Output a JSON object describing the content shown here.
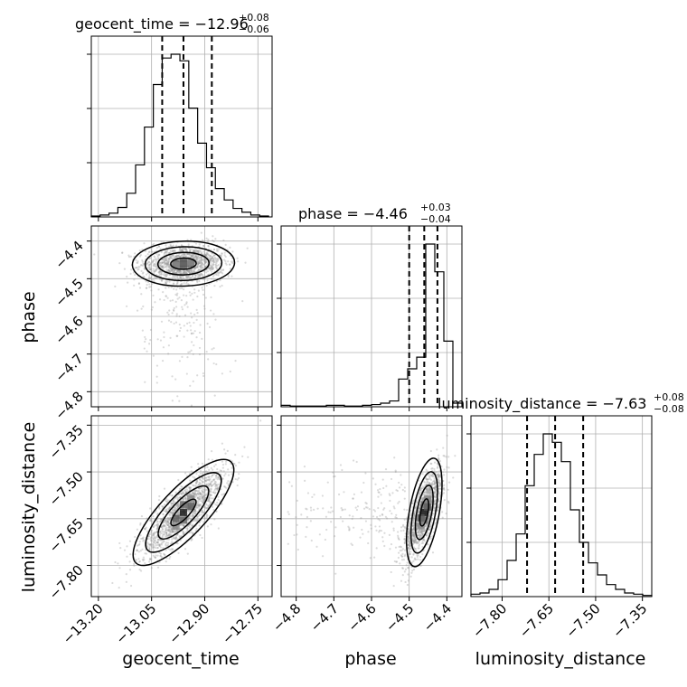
{
  "chart_data": {
    "type": "corner",
    "parameters": [
      "geocent_time",
      "phase",
      "luminosity_distance"
    ],
    "titles": [
      {
        "param": "geocent_time",
        "text": "geocent_time = −12.96",
        "plus": "+0.08",
        "minus": "−0.06"
      },
      {
        "param": "phase",
        "text": "phase = −4.46",
        "plus": "+0.03",
        "minus": "−0.04"
      },
      {
        "param": "luminosity_distance",
        "text": "luminosity_distance = −7.63",
        "plus": "+0.08",
        "minus": "−0.08"
      }
    ],
    "axes": {
      "geocent_time": {
        "range": [
          -13.22,
          -12.71
        ],
        "ticks": [
          -13.2,
          -13.05,
          -12.9,
          -12.75
        ],
        "tick_labels": [
          "−13.20",
          "−13.05",
          "−12.90",
          "−12.75"
        ]
      },
      "phase": {
        "range": [
          -4.84,
          -4.36
        ],
        "ticks": [
          -4.8,
          -4.7,
          -4.6,
          -4.5,
          -4.4
        ],
        "tick_labels": [
          "−4.8",
          "−4.7",
          "−4.6",
          "−4.5",
          "−4.4"
        ]
      },
      "luminosity_distance": {
        "range": [
          -7.9,
          -7.32
        ],
        "ticks": [
          -7.8,
          -7.65,
          -7.5,
          -7.35
        ],
        "tick_labels": [
          "−7.80",
          "−7.65",
          "−7.50",
          "−7.35"
        ]
      }
    },
    "marginals": {
      "geocent_time": {
        "quantiles": [
          -13.02,
          -12.96,
          -12.88
        ],
        "bin_edges": [
          -13.22,
          -13.195,
          -13.17,
          -13.145,
          -13.12,
          -13.095,
          -13.07,
          -13.045,
          -13.02,
          -12.995,
          -12.97,
          -12.945,
          -12.92,
          -12.895,
          -12.87,
          -12.845,
          -12.82,
          -12.795,
          -12.77,
          -12.745,
          -12.72
        ],
        "counts": [
          1,
          2,
          4,
          10,
          25,
          55,
          95,
          140,
          168,
          172,
          165,
          115,
          78,
          52,
          30,
          18,
          9,
          5,
          2,
          1
        ]
      },
      "phase": {
        "quantiles": [
          -4.5,
          -4.46,
          -4.425
        ],
        "bin_edges": [
          -4.84,
          -4.816,
          -4.792,
          -4.768,
          -4.744,
          -4.72,
          -4.696,
          -4.672,
          -4.648,
          -4.624,
          -4.6,
          -4.576,
          -4.552,
          -4.528,
          -4.504,
          -4.48,
          -4.456,
          -4.432,
          -4.408,
          -4.384,
          -4.36
        ],
        "counts": [
          2,
          1,
          1,
          1,
          1,
          2,
          2,
          1,
          1,
          2,
          3,
          5,
          8,
          38,
          52,
          68,
          223,
          185,
          90,
          5
        ]
      },
      "luminosity_distance": {
        "quantiles": [
          -7.72,
          -7.63,
          -7.54
        ],
        "bin_edges": [
          -7.9,
          -7.871,
          -7.842,
          -7.813,
          -7.784,
          -7.755,
          -7.726,
          -7.697,
          -7.668,
          -7.639,
          -7.61,
          -7.581,
          -7.552,
          -7.523,
          -7.494,
          -7.465,
          -7.436,
          -7.407,
          -7.378,
          -7.349,
          -7.32
        ],
        "counts": [
          2,
          3,
          6,
          14,
          30,
          52,
          92,
          118,
          135,
          128,
          112,
          72,
          45,
          28,
          18,
          10,
          6,
          3,
          2,
          1
        ]
      }
    },
    "correlations": [
      {
        "x": "geocent_time",
        "y": "phase",
        "mean": [
          -12.96,
          -4.46
        ],
        "sd": [
          0.06,
          0.025
        ],
        "rho": 0.1
      },
      {
        "x": "geocent_time",
        "y": "luminosity_distance",
        "mean": [
          -12.96,
          -7.63
        ],
        "sd": [
          0.06,
          0.07
        ],
        "rho": 0.8
      },
      {
        "x": "phase",
        "y": "luminosity_distance",
        "mean": [
          -4.46,
          -7.63
        ],
        "sd": [
          0.025,
          0.07
        ],
        "rho": 0.72
      }
    ],
    "grid": true
  }
}
